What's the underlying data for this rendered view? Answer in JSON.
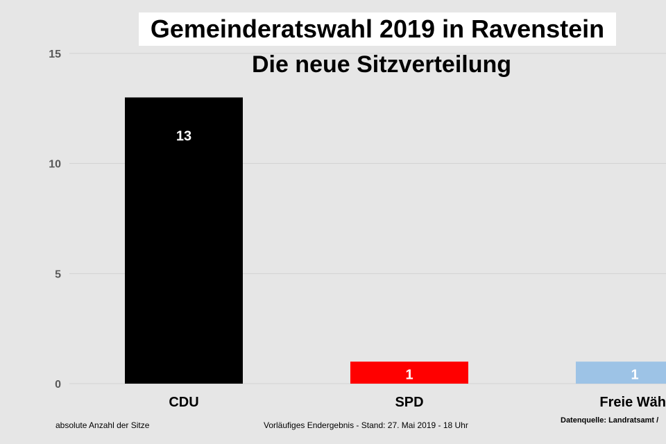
{
  "title": "Gemeinderatswahl 2019 in Ravenstein",
  "subtitle": "Die neue Sitzverteilung",
  "footer": {
    "left": "absolute Anzahl der Sitze",
    "center": "Vorläufiges Endergebnis - Stand: 27. Mai 2019  - 18 Uhr",
    "right": "Datenquelle: Landratsamt /"
  },
  "chart_data": {
    "type": "bar",
    "categories": [
      "CDU",
      "SPD",
      "Freie Wähl"
    ],
    "values": [
      13,
      1,
      1
    ],
    "colors": [
      "#000000",
      "#ff0000",
      "#9dc3e6"
    ],
    "data_label_colors": [
      "#ffffff",
      "#ffffff",
      "#ffffff"
    ],
    "yticks": [
      0,
      5,
      10,
      15
    ],
    "ylim": [
      0,
      15
    ],
    "grid": true,
    "title": "Gemeinderatswahl 2019 in Ravenstein",
    "subtitle": "Die neue Sitzverteilung"
  }
}
